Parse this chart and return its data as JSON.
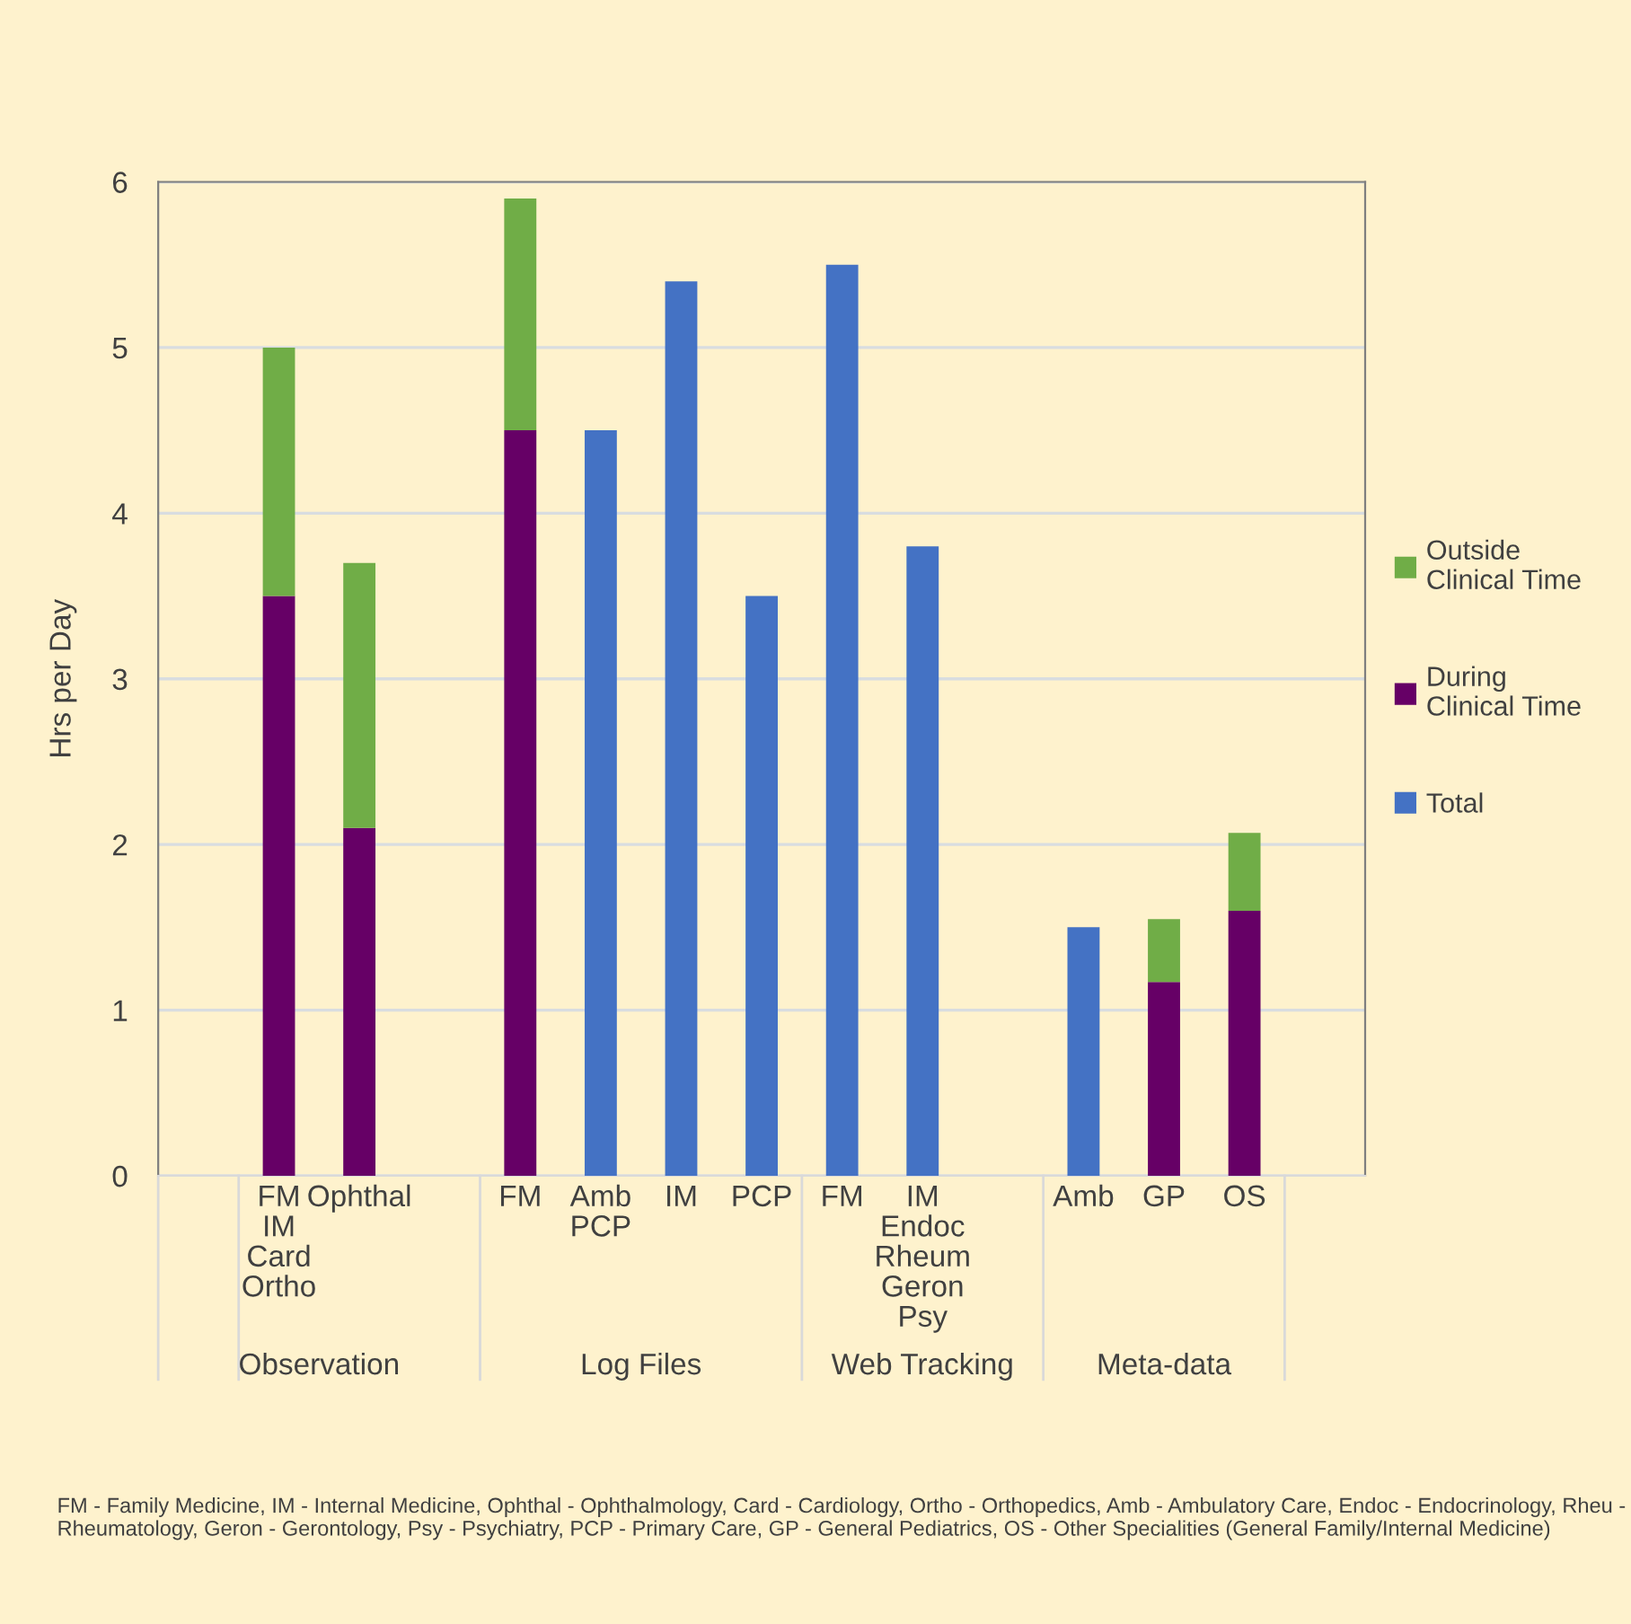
{
  "chart_data": {
    "type": "bar",
    "ylabel": "Hrs per Day",
    "stacked": true,
    "categories": [
      null,
      "FM\nIM\nCard\nOrtho",
      "Ophthal",
      null,
      "FM",
      "Amb\nPCP",
      "IM",
      "PCP",
      "FM",
      "IM\nEndoc\nRheum\nGeron\nPsy",
      null,
      "Amb",
      "GP",
      "OS",
      null
    ],
    "series": [
      {
        "name": "Total",
        "color": "#4472c4",
        "values": [
          null,
          null,
          null,
          null,
          null,
          4.5,
          5.4,
          3.5,
          5.5,
          3.8,
          null,
          1.5,
          null,
          null,
          null
        ]
      },
      {
        "name": "During Clinical Time",
        "color": "#660066",
        "values": [
          null,
          3.5,
          2.1,
          null,
          4.5,
          null,
          null,
          null,
          null,
          null,
          null,
          null,
          1.17,
          1.6,
          null
        ]
      },
      {
        "name": "Outside Clinical Time",
        "color": "#70ad47",
        "values": [
          null,
          1.5,
          1.6,
          null,
          1.4,
          null,
          null,
          null,
          null,
          null,
          null,
          null,
          0.38,
          0.47,
          null
        ]
      }
    ],
    "ylim": [
      0,
      6
    ],
    "yticks": [
      0,
      1,
      2,
      3,
      4,
      5,
      6
    ],
    "grid": "y",
    "legend": "right",
    "annotations": [
      "Observation",
      "Log Files",
      "Web Tracking",
      "Meta-data",
      "FM - Family Medicine, IM - Internal Medicine, Ophthal - Ophthalmology, Card - Cardiology, Ortho - Orthopedics, Amb - Ambulatory Care, Endoc - Endocrinology, Rheu - Rheumatology, Geron - Gerontology, Psy - Psychiatry, PCP - Primary Care, GP - General Pediatrics, OS - Other Specialities (General Family/Internal Medicine)"
    ]
  }
}
